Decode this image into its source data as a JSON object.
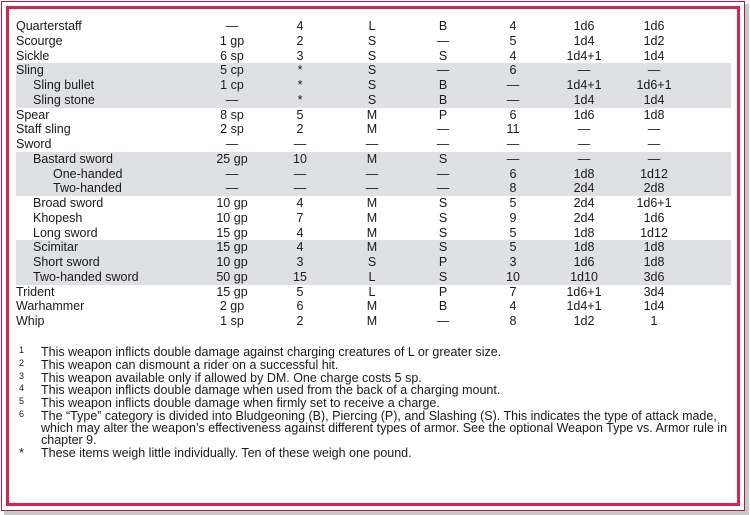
{
  "colors": {
    "border": "#d4254e",
    "shade": "#dfe0e3"
  },
  "rows": [
    {
      "name": "Quarterstaff",
      "indent": 0,
      "shaded": false,
      "cost": "—",
      "weight": "4",
      "size": "L",
      "type": "B",
      "speed": "4",
      "sm": "1d6",
      "l": "1d6"
    },
    {
      "name": "Scourge",
      "indent": 0,
      "shaded": false,
      "cost": "1 gp",
      "weight": "2",
      "size": "S",
      "type": "—",
      "speed": "5",
      "sm": "1d4",
      "l": "1d2"
    },
    {
      "name": "Sickle",
      "indent": 0,
      "shaded": false,
      "cost": "6 sp",
      "weight": "3",
      "size": "S",
      "type": "S",
      "speed": "4",
      "sm": "1d4+1",
      "l": "1d4"
    },
    {
      "name": "Sling",
      "indent": 0,
      "shaded": true,
      "cost": "5 cp",
      "weight": "*",
      "size": "S",
      "type": "—",
      "speed": "6",
      "sm": "—",
      "l": "—"
    },
    {
      "name": "Sling bullet",
      "indent": 1,
      "shaded": true,
      "cost": "1 cp",
      "weight": "*",
      "size": "S",
      "type": "B",
      "speed": "—",
      "sm": "1d4+1",
      "l": "1d6+1"
    },
    {
      "name": "Sling stone",
      "indent": 1,
      "shaded": true,
      "cost": "—",
      "weight": "*",
      "size": "S",
      "type": "B",
      "speed": "—",
      "sm": "1d4",
      "l": "1d4"
    },
    {
      "name": "Spear",
      "indent": 0,
      "shaded": false,
      "cost": "8 sp",
      "weight": "5",
      "size": "M",
      "type": "P",
      "speed": "6",
      "sm": "1d6",
      "l": "1d8"
    },
    {
      "name": "Staff sling",
      "indent": 0,
      "shaded": false,
      "cost": "2 sp",
      "weight": "2",
      "size": "M",
      "type": "—",
      "speed": "11",
      "sm": "—",
      "l": "—"
    },
    {
      "name": "Sword",
      "indent": 0,
      "shaded": false,
      "cost": "—",
      "weight": "—",
      "size": "—",
      "type": "—",
      "speed": "—",
      "sm": "—",
      "l": "—"
    },
    {
      "name": "Bastard sword",
      "indent": 1,
      "shaded": true,
      "cost": "25 gp",
      "weight": "10",
      "size": "M",
      "type": "S",
      "speed": "—",
      "sm": "—",
      "l": "—"
    },
    {
      "name": "One-handed",
      "indent": 2,
      "shaded": true,
      "cost": "—",
      "weight": "—",
      "size": "—",
      "type": "—",
      "speed": "6",
      "sm": "1d8",
      "l": "1d12"
    },
    {
      "name": "Two-handed",
      "indent": 2,
      "shaded": true,
      "cost": "—",
      "weight": "—",
      "size": "—",
      "type": "—",
      "speed": "8",
      "sm": "2d4",
      "l": "2d8"
    },
    {
      "name": "Broad sword",
      "indent": 1,
      "shaded": false,
      "cost": "10 gp",
      "weight": "4",
      "size": "M",
      "type": "S",
      "speed": "5",
      "sm": "2d4",
      "l": "1d6+1"
    },
    {
      "name": "Khopesh",
      "indent": 1,
      "shaded": false,
      "cost": "10 gp",
      "weight": "7",
      "size": "M",
      "type": "S",
      "speed": "9",
      "sm": "2d4",
      "l": "1d6"
    },
    {
      "name": "Long sword",
      "indent": 1,
      "shaded": false,
      "cost": "15 gp",
      "weight": "4",
      "size": "M",
      "type": "S",
      "speed": "5",
      "sm": "1d8",
      "l": "1d12"
    },
    {
      "name": "Scimitar",
      "indent": 1,
      "shaded": true,
      "cost": "15 gp",
      "weight": "4",
      "size": "M",
      "type": "S",
      "speed": "5",
      "sm": "1d8",
      "l": "1d8"
    },
    {
      "name": "Short sword",
      "indent": 1,
      "shaded": true,
      "cost": "10 gp",
      "weight": "3",
      "size": "S",
      "type": "P",
      "speed": "3",
      "sm": "1d6",
      "l": "1d8"
    },
    {
      "name": "Two-handed sword",
      "indent": 1,
      "shaded": true,
      "cost": "50 gp",
      "weight": "15",
      "size": "L",
      "type": "S",
      "speed": "10",
      "sm": "1d10",
      "l": "3d6"
    },
    {
      "name": "Trident",
      "indent": 0,
      "shaded": false,
      "cost": "15 gp",
      "weight": "5",
      "size": "L",
      "type": "P",
      "speed": "7",
      "sm": "1d6+1",
      "l": "3d4"
    },
    {
      "name": "Warhammer",
      "indent": 0,
      "shaded": false,
      "cost": "2 gp",
      "weight": "6",
      "size": "M",
      "type": "B",
      "speed": "4",
      "sm": "1d4+1",
      "l": "1d4"
    },
    {
      "name": "Whip",
      "indent": 0,
      "shaded": false,
      "cost": "1 sp",
      "weight": "2",
      "size": "M",
      "type": "—",
      "speed": "8",
      "sm": "1d2",
      "l": "1"
    }
  ],
  "footnotes": [
    {
      "mark": "1",
      "text": "This weapon inflicts double damage against charging creatures of L or greater size."
    },
    {
      "mark": "2",
      "text": "This weapon can dismount a rider on a successful hit."
    },
    {
      "mark": "3",
      "text": "This weapon available only if allowed by DM. One charge costs 5 sp."
    },
    {
      "mark": "4",
      "text": "This weapon inflicts double damage when used from the back of a charging mount."
    },
    {
      "mark": "5",
      "text": "This weapon inflicts double damage when firmly set to receive a charge."
    },
    {
      "mark": "6",
      "text": "The “Type” category is divided into Bludgeoning (B), Piercing (P), and Slashing (S). This indicates the type of attack made, which may alter the weapon’s effectiveness against different types of armor. See the optional Weapon Type vs. Armor rule in chapter 9."
    },
    {
      "mark": "*",
      "text": "These items weigh little individually. Ten of these weigh one pound."
    }
  ]
}
